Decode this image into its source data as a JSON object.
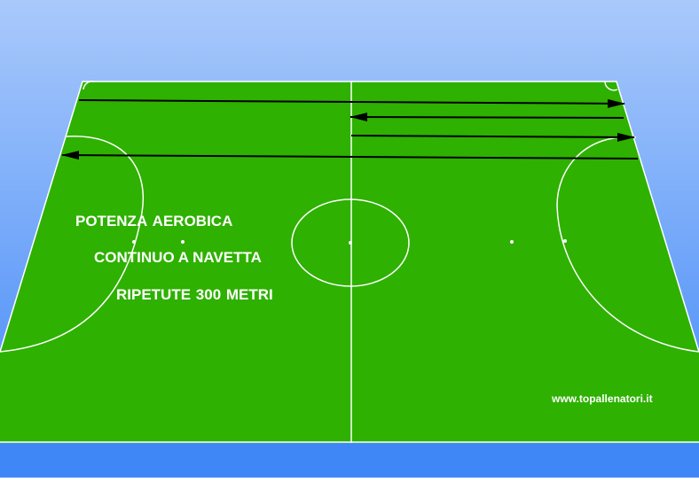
{
  "colors": {
    "sky_top": "#a9c9fb",
    "sky_bottom": "#3f87f7",
    "field": "#2eb100",
    "lines": "#ffffff",
    "arrows": "#000000",
    "bottom_band": "#3f87f7"
  },
  "labels": {
    "line1": "POTENZA   AEROBICA",
    "line2": "CONTINUO A NAVETTA",
    "line3": "RIPETUTE  300 METRI",
    "website": "www.topallenatori.it"
  }
}
